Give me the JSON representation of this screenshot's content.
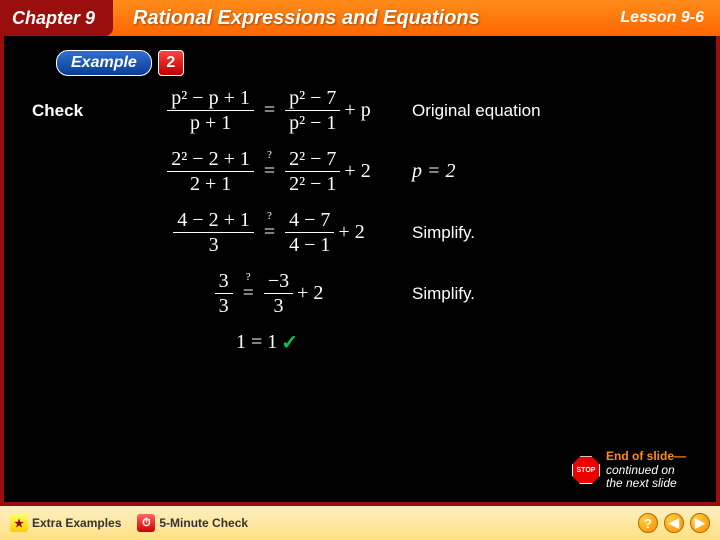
{
  "header": {
    "chapter": "Chapter 9",
    "title": "Rational Expressions and Equations",
    "lesson": "Lesson 9-6"
  },
  "example": {
    "label": "Example",
    "number": "2"
  },
  "rows": [
    {
      "left": "Check",
      "right": "Original equation"
    },
    {
      "left": "",
      "right": "p = 2"
    },
    {
      "left": "",
      "right": "Simplify."
    },
    {
      "left": "",
      "right": "Simplify."
    },
    {
      "left": "",
      "right": ""
    }
  ],
  "math": {
    "r1": {
      "ln": "p² − p + 1",
      "ld": "p + 1",
      "rn": "p² − 7",
      "rd": "p² − 1",
      "tail": "+ p",
      "eq": "=",
      "q": ""
    },
    "r2": {
      "ln": "2² − 2 + 1",
      "ld": "2 + 1",
      "rn": "2² − 7",
      "rd": "2² − 1",
      "tail": "+ 2",
      "eq": "=",
      "q": "?"
    },
    "r3": {
      "ln": "4 − 2 + 1",
      "ld": "3",
      "rn": "4 − 7",
      "rd": "4 − 1",
      "tail": "+ 2",
      "eq": "=",
      "q": "?"
    },
    "r4": {
      "ln": "3",
      "ld": "3",
      "rn": "−3",
      "rd": "3",
      "tail": "+ 2",
      "eq": "=",
      "q": "?"
    },
    "r5": {
      "text": "1 = 1",
      "check": "✓"
    },
    "p_eq": "p = 2"
  },
  "endslide": {
    "stop": "STOP",
    "l1": "End of slide—",
    "l2": "continued on",
    "l3": "the next slide"
  },
  "footer": {
    "extra": "Extra Examples",
    "fivemin": "5-Minute Check",
    "help": "?",
    "back": "◀",
    "fwd": "▶"
  }
}
